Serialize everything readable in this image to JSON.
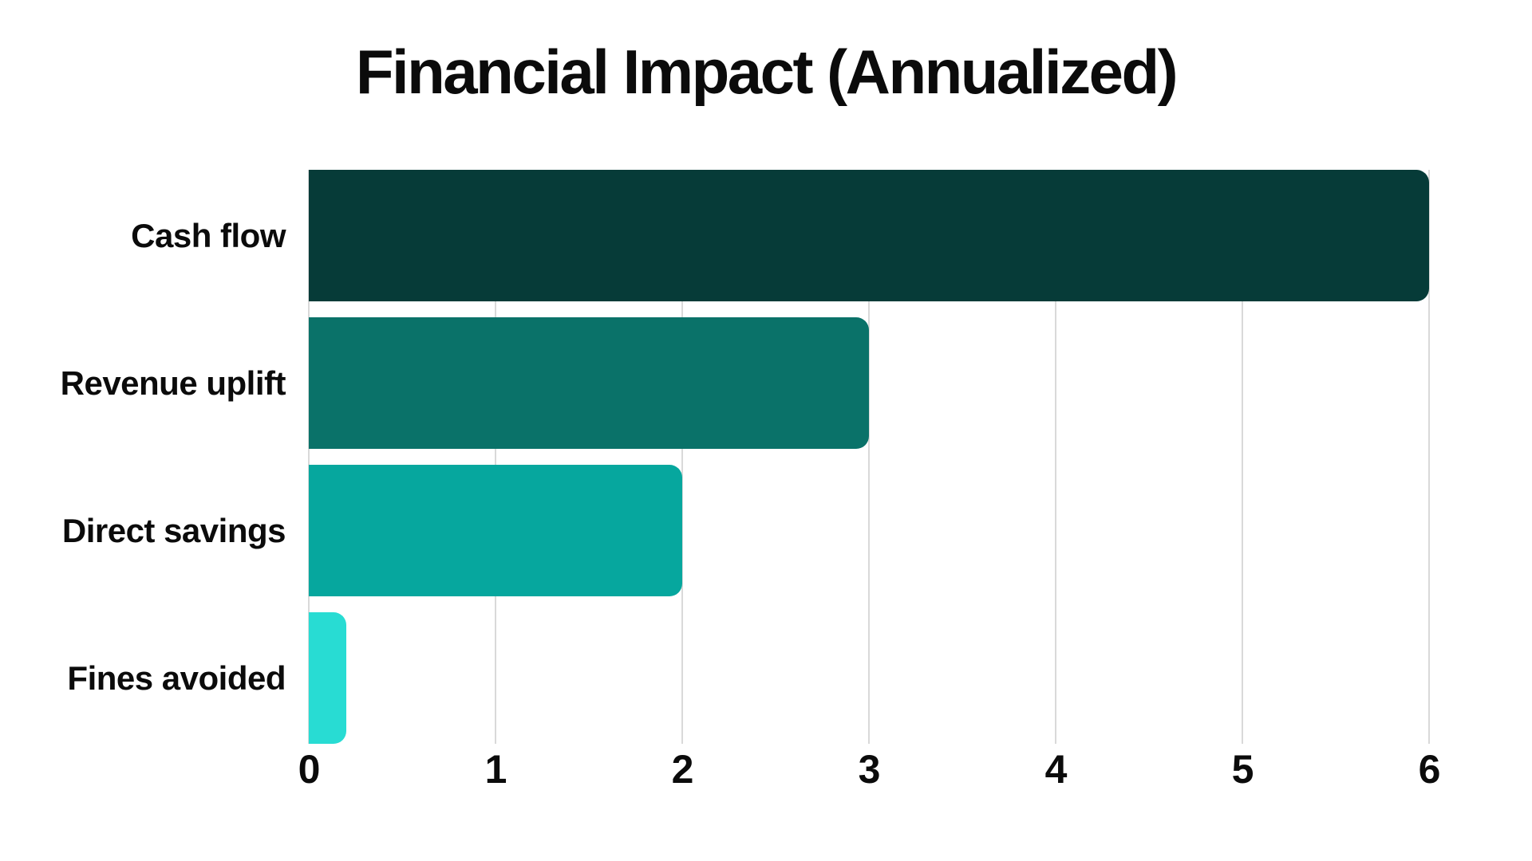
{
  "title": "Financial Impact (Annualized)",
  "chart_data": {
    "type": "bar",
    "orientation": "horizontal",
    "title": "Financial Impact (Annualized)",
    "categories": [
      "Cash flow",
      "Revenue uplift",
      "Direct savings",
      "Fines avoided"
    ],
    "values": [
      6,
      3,
      2,
      0.2
    ],
    "bar_colors": [
      "#063b38",
      "#0a7269",
      "#06a79e",
      "#28dcd3"
    ],
    "xlabel": "",
    "ylabel": "",
    "xlim": [
      0,
      6
    ],
    "x_ticks": [
      "0",
      "1",
      "2",
      "3",
      "4",
      "5",
      "6"
    ],
    "x_tick_values": [
      0,
      1,
      2,
      3,
      4,
      5,
      6
    ],
    "grid": "vertical",
    "gridline_color": "#d9d9d9",
    "legend": "none",
    "background_color": "#ffffff",
    "text_color": "#0b0b0b"
  }
}
